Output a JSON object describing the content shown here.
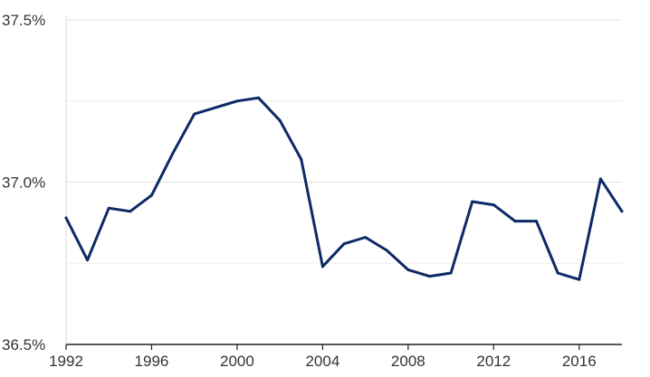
{
  "chart_data": {
    "type": "line",
    "x": [
      1992,
      1993,
      1994,
      1995,
      1996,
      1997,
      1998,
      1999,
      2000,
      2001,
      2002,
      2003,
      2004,
      2005,
      2006,
      2007,
      2008,
      2009,
      2010,
      2011,
      2012,
      2013,
      2014,
      2015,
      2016,
      2017,
      2018
    ],
    "series": [
      {
        "values": [
          36.89,
          36.76,
          36.92,
          36.91,
          36.96,
          37.09,
          37.21,
          37.23,
          37.25,
          37.26,
          37.19,
          37.07,
          36.74,
          36.81,
          36.83,
          36.79,
          36.73,
          36.71,
          36.72,
          36.94,
          36.93,
          36.88,
          36.88,
          36.72,
          36.7,
          37.01,
          36.91
        ],
        "color": "#0d2a66"
      }
    ],
    "title": "",
    "xlabel": "",
    "ylabel": "",
    "xlim": [
      1992,
      2018
    ],
    "ylim": [
      36.5,
      37.5
    ],
    "x_ticks": [
      1992,
      1996,
      2000,
      2004,
      2008,
      2012,
      2016
    ],
    "x_tick_labels": [
      "1992",
      "1996",
      "2000",
      "2004",
      "2008",
      "2012",
      "2016"
    ],
    "y_ticks": [
      36.5,
      37.0,
      37.5
    ],
    "y_tick_labels": [
      "36.5%",
      "37.0%",
      "37.5%"
    ],
    "y_minor_gridlines": [
      36.75,
      37.25
    ],
    "grid": true,
    "legend": "none"
  }
}
